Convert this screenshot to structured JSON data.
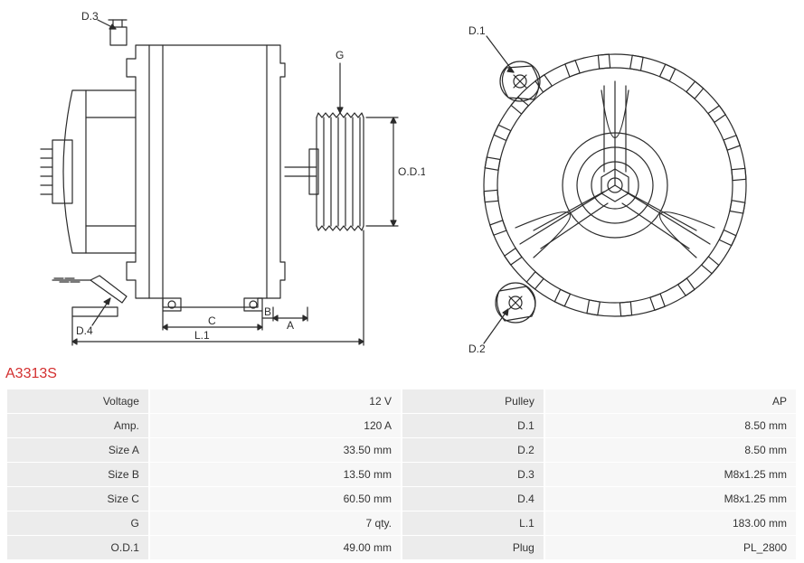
{
  "part_number": "A3313S",
  "diagram": {
    "labels": {
      "D1": "D.1",
      "D2": "D.2",
      "D3": "D.3",
      "D4": "D.4",
      "G": "G",
      "OD1": "O.D.1",
      "A": "A",
      "B": "B",
      "C": "C",
      "L1": "L.1"
    },
    "stroke_color": "#2b2b2b",
    "stroke_width": 1.2,
    "label_fontsize": 12,
    "label_color": "#2b2b2b"
  },
  "specs_left": [
    {
      "label": "Voltage",
      "value": "12 V"
    },
    {
      "label": "Amp.",
      "value": "120 A"
    },
    {
      "label": "Size A",
      "value": "33.50 mm"
    },
    {
      "label": "Size B",
      "value": "13.50 mm"
    },
    {
      "label": "Size C",
      "value": "60.50 mm"
    },
    {
      "label": "G",
      "value": "7 qty."
    },
    {
      "label": "O.D.1",
      "value": "49.00 mm"
    }
  ],
  "specs_right": [
    {
      "label": "Pulley",
      "value": "AP"
    },
    {
      "label": "D.1",
      "value": "8.50 mm"
    },
    {
      "label": "D.2",
      "value": "8.50 mm"
    },
    {
      "label": "D.3",
      "value": "M8x1.25 mm"
    },
    {
      "label": "D.4",
      "value": "M8x1.25 mm"
    },
    {
      "label": "L.1",
      "value": "183.00 mm"
    },
    {
      "label": "Plug",
      "value": "PL_2800"
    }
  ],
  "table_style": {
    "label_bg": "#ececec",
    "value_bg": "#f7f7f7",
    "text_color": "#333333",
    "fontsize": 12
  }
}
